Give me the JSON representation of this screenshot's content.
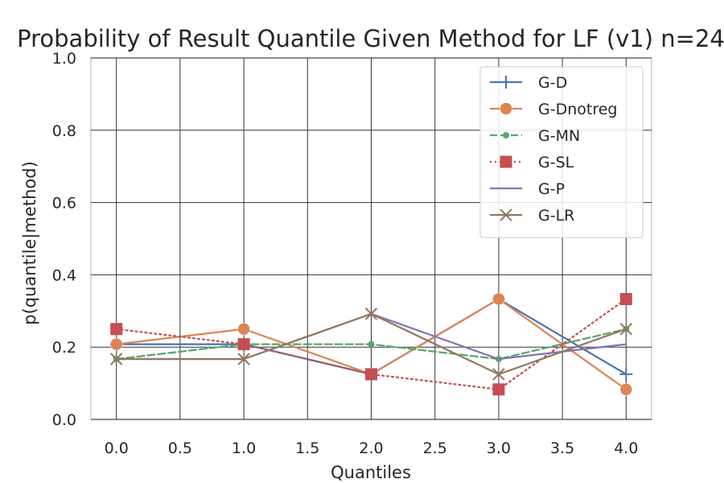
{
  "chart_data": {
    "type": "line",
    "title": "Probability of Result Quantile Given Method for LF (v1) n=24",
    "xlabel": "Quantiles",
    "ylabel": "p(quantile|method)",
    "x": [
      0,
      1,
      2,
      3,
      4
    ],
    "xlim": [
      -0.2,
      4.2
    ],
    "ylim": [
      0.0,
      1.0
    ],
    "xticks": [
      "0.0",
      "0.5",
      "1.0",
      "1.5",
      "2.0",
      "2.5",
      "3.0",
      "3.5",
      "4.0"
    ],
    "yticks": [
      "0.0",
      "0.2",
      "0.4",
      "0.6",
      "0.8",
      "1.0"
    ],
    "grid": true,
    "legend_position": "top-right",
    "series": [
      {
        "name": "G-D",
        "values": [
          0.208,
          0.208,
          0.125,
          0.333,
          0.125
        ],
        "color": "#4c72b0",
        "dash": "solid",
        "marker": "plus"
      },
      {
        "name": "G-Dnotreg",
        "values": [
          0.208,
          0.25,
          0.125,
          0.333,
          0.083
        ],
        "color": "#dd8452",
        "dash": "solid",
        "marker": "circle"
      },
      {
        "name": "G-MN",
        "values": [
          0.167,
          0.208,
          0.208,
          0.167,
          0.25
        ],
        "color": "#55a868",
        "dash": "dashed",
        "marker": "dot"
      },
      {
        "name": "G-SL",
        "values": [
          0.25,
          0.208,
          0.125,
          0.083,
          0.333
        ],
        "color": "#c44e52",
        "dash": "dotted",
        "marker": "square"
      },
      {
        "name": "G-P",
        "values": [
          0.167,
          0.167,
          0.292,
          0.167,
          0.208
        ],
        "color": "#8172b3",
        "dash": "solid",
        "marker": "none"
      },
      {
        "name": "G-LR",
        "values": [
          0.167,
          0.167,
          0.292,
          0.125,
          0.25
        ],
        "color": "#937860",
        "dash": "solid",
        "marker": "x"
      }
    ]
  }
}
